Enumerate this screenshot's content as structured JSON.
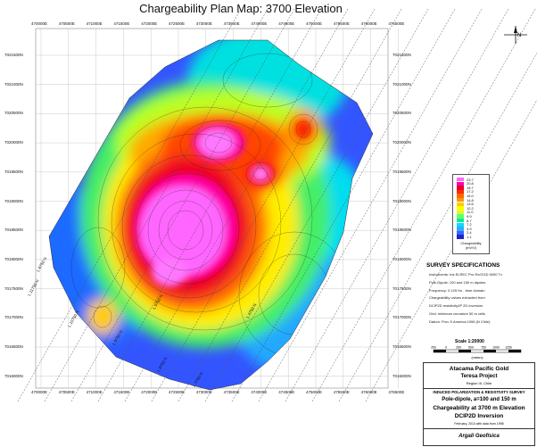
{
  "title": "Chargeability Plan Map: 3700 Elevation",
  "north_label": "N",
  "eastings": [
    "470000E",
    "470500E",
    "471000E",
    "471500E",
    "472000E",
    "472500E",
    "473000E",
    "473500E",
    "474000E",
    "474500E",
    "475000E",
    "475500E",
    "476000E",
    "476500E"
  ],
  "northings": [
    "7021500N",
    "7021000N",
    "7020500N",
    "7020000N",
    "7019500N",
    "7019000N",
    "7018500N",
    "7018000N",
    "7017500N",
    "7017000N",
    "7016500N",
    "7016000N"
  ],
  "line_labels": [
    "L 11750 N",
    "L 10750 N",
    "L 9750 N",
    "L 8750 N",
    "L 7750 N",
    "L 6750 N",
    "L 5750 N",
    "L 4750 N"
  ],
  "legend": {
    "values": [
      "23.7",
      "20.8",
      "18.7",
      "17.2",
      "16.0",
      "14.8",
      "13.6",
      "12.2",
      "11.0",
      "9.9",
      "8.7",
      "7.2",
      "3.9",
      "2.4",
      "1.1"
    ],
    "colors": [
      "#ff66ff",
      "#ff00aa",
      "#e8002a",
      "#ff2a00",
      "#ff6a00",
      "#ff9900",
      "#ffcc00",
      "#ffff00",
      "#ccff33",
      "#66ff66",
      "#00ee99",
      "#00ddff",
      "#33aaff",
      "#3366ff",
      "#2222cc"
    ],
    "caption_line1": "Chargeability",
    "caption_line2": "(mV/V)"
  },
  "survey": {
    "heading": "SURVEY SPECIFICATIONS",
    "lines": [
      "Instruments: Iris ELREC Pro Rx/GGD 5000 Tx",
      "Pole-Dipole: 100 and 150 m dipoles",
      "Frequency: 0.125 Hz - time domain",
      "Chargeability values extracted from",
      "DCIP2D resistivity/IP 2D inversion",
      "Grid: minimum curvature 50 m cells",
      "Datum: Prov S America 1956 (N Chile)"
    ]
  },
  "scale": {
    "title": "Scale 1:20000",
    "ticks": [
      "250",
      "0",
      "250",
      "500",
      "750",
      "1000",
      "1250"
    ],
    "unit": "(meters)"
  },
  "title_block": {
    "company": "Atacama Pacific Gold",
    "project": "Teresa Project",
    "region": "Region III, Chile",
    "survey_type": "INDUCED POLARIZATION & RESISTIVITY SURVEY",
    "array": "Pole-dipole, a=100 and 150 m",
    "product": "Chargeability at 3700 m Elevation",
    "inversion": "DCIP2D Inversion",
    "date": "February, 2013 with data from 1998",
    "contractor": "Argali Geofísica"
  }
}
